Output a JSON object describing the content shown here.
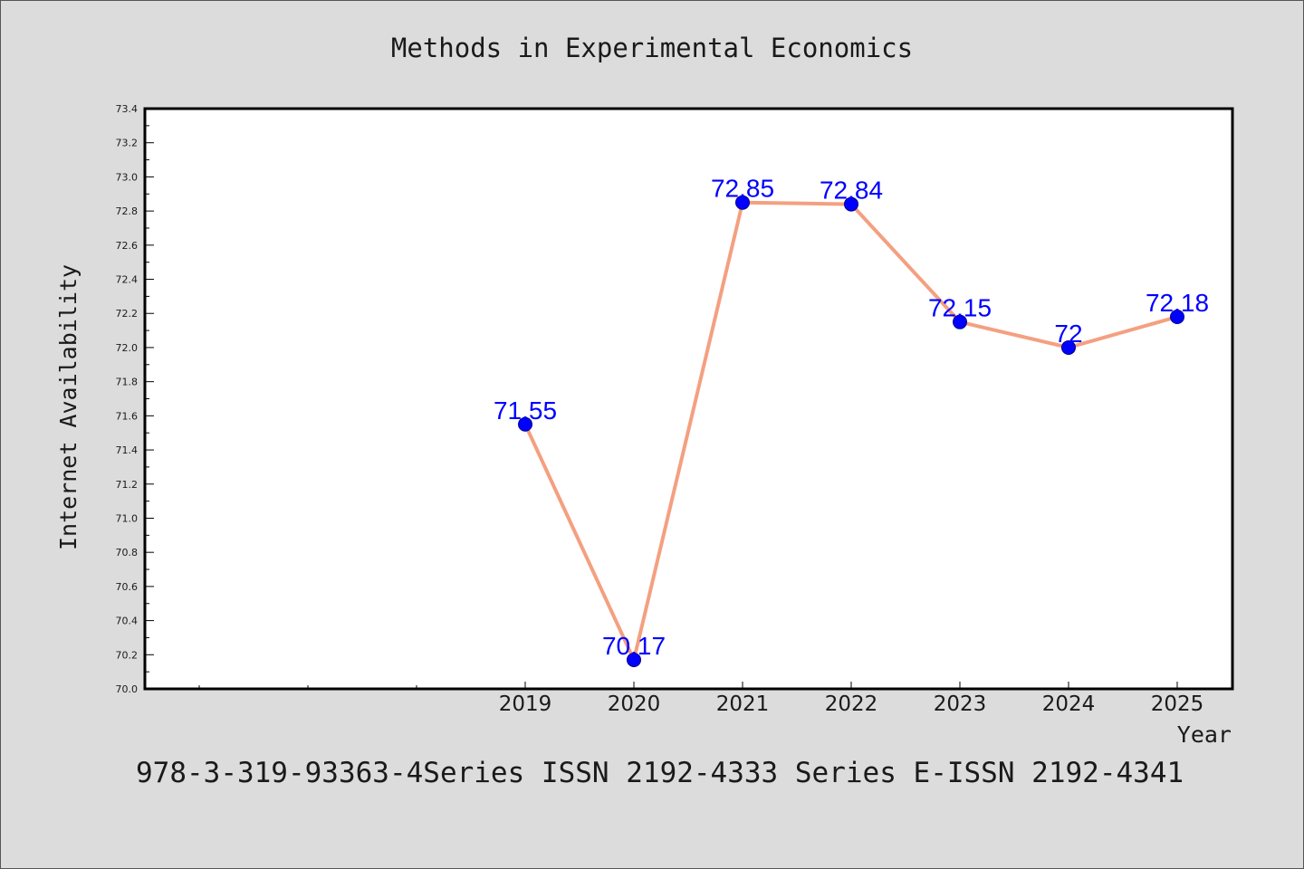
{
  "chart_data": {
    "type": "line",
    "title": "Methods in Experimental Economics",
    "xlabel": "Year",
    "ylabel": "Internet Availability",
    "categories": [
      "2019",
      "2020",
      "2021",
      "2022",
      "2023",
      "2024",
      "2025"
    ],
    "data_labels": [
      "71.55",
      "70.17",
      "72.85",
      "72.84",
      "72.15",
      "72",
      "72.18"
    ],
    "series": [
      {
        "values": [
          71.55,
          70.17,
          72.85,
          72.84,
          72.15,
          72.0,
          72.18
        ],
        "line_color": "#f4a080",
        "marker_color": "#0000ff"
      }
    ],
    "ylim": [
      70.0,
      73.4
    ],
    "yticks": [
      "70.0",
      "70.2",
      "70.4",
      "70.6",
      "70.8",
      "71.0",
      "71.2",
      "71.4",
      "71.6",
      "71.8",
      "72.0",
      "72.2",
      "72.4",
      "72.6",
      "72.8",
      "73.0",
      "73.2",
      "73.4"
    ],
    "grid": false,
    "legend": "none"
  },
  "footnote": "978-3-319-93363-4Series ISSN 2192-4333 Series E-ISSN 2192-4341",
  "colors": {
    "background": "#dcdcdc",
    "plot_area": "#ffffff",
    "line": "#f4a080",
    "marker": "#0000ff",
    "label": "#0000ff"
  }
}
